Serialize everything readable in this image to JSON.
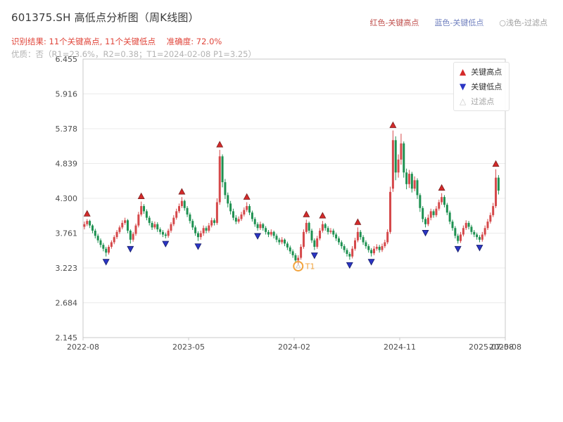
{
  "header": {
    "legend_top": [
      {
        "label": "红色-关键高点",
        "color": "#c0504d"
      },
      {
        "label": "蓝色-关键低点",
        "color": "#7080bf"
      },
      {
        "label": "○浅色-过滤点",
        "color": "#9e9e9e"
      }
    ],
    "result_line": "识别结果: 11个关键高点, 11个关键低点",
    "accuracy_line": "准确度: 72.0%",
    "quality_line": "优质：否（R1=23.6%，R2=0.38；T1=2024-02-08 P1=3.25）"
  },
  "chart_data": {
    "type": "candlestick",
    "title": "601375.SH 高低点分析图（周K线图）",
    "xlabel": "",
    "ylabel": "",
    "ylim": [
      2.145,
      6.455
    ],
    "grid": "horizontal",
    "legend_position": "upper right",
    "y_ticks": [
      "6.455",
      "5.916",
      "5.378",
      "4.839",
      "4.300",
      "3.761",
      "3.223",
      "2.684",
      "2.145"
    ],
    "x_ticks": [
      {
        "label": "2022-08",
        "pos": 0
      },
      {
        "label": "2023-05",
        "pos": 39
      },
      {
        "label": "2024-02",
        "pos": 78
      },
      {
        "label": "2024-11",
        "pos": 117
      },
      {
        "label": "2025-08",
        "pos": 156
      }
    ],
    "end_date_label": "2025-07-08",
    "x_span": 156,
    "candles": [
      [
        3.86,
        3.94,
        3.82,
        3.9
      ],
      [
        3.9,
        3.98,
        3.87,
        3.95
      ],
      [
        3.95,
        3.97,
        3.84,
        3.88
      ],
      [
        3.88,
        3.9,
        3.76,
        3.8
      ],
      [
        3.8,
        3.83,
        3.68,
        3.72
      ],
      [
        3.72,
        3.75,
        3.61,
        3.65
      ],
      [
        3.65,
        3.68,
        3.54,
        3.58
      ],
      [
        3.58,
        3.61,
        3.48,
        3.52
      ],
      [
        3.52,
        3.55,
        3.4,
        3.46
      ],
      [
        3.46,
        3.58,
        3.43,
        3.55
      ],
      [
        3.55,
        3.65,
        3.52,
        3.62
      ],
      [
        3.62,
        3.73,
        3.59,
        3.7
      ],
      [
        3.7,
        3.81,
        3.67,
        3.78
      ],
      [
        3.78,
        3.88,
        3.75,
        3.85
      ],
      [
        3.85,
        3.96,
        3.82,
        3.92
      ],
      [
        3.92,
        4.0,
        3.89,
        3.96
      ],
      [
        3.96,
        3.98,
        3.76,
        3.8
      ],
      [
        3.8,
        3.82,
        3.6,
        3.66
      ],
      [
        3.66,
        3.78,
        3.63,
        3.75
      ],
      [
        3.75,
        3.91,
        3.72,
        3.88
      ],
      [
        3.88,
        4.09,
        3.85,
        4.05
      ],
      [
        4.05,
        4.25,
        4.02,
        4.18
      ],
      [
        4.18,
        4.21,
        4.06,
        4.1
      ],
      [
        4.1,
        4.13,
        3.96,
        4.0
      ],
      [
        4.0,
        4.03,
        3.88,
        3.92
      ],
      [
        3.92,
        3.95,
        3.81,
        3.85
      ],
      [
        3.85,
        3.94,
        3.82,
        3.9
      ],
      [
        3.9,
        3.93,
        3.78,
        3.82
      ],
      [
        3.82,
        3.85,
        3.74,
        3.78
      ],
      [
        3.78,
        3.81,
        3.7,
        3.74
      ],
      [
        3.74,
        3.77,
        3.68,
        3.72
      ],
      [
        3.72,
        3.83,
        3.69,
        3.8
      ],
      [
        3.8,
        3.93,
        3.77,
        3.9
      ],
      [
        3.9,
        4.04,
        3.87,
        4.0
      ],
      [
        4.0,
        4.14,
        3.97,
        4.1
      ],
      [
        4.1,
        4.22,
        4.07,
        4.18
      ],
      [
        4.18,
        4.32,
        4.15,
        4.26
      ],
      [
        4.26,
        4.28,
        4.11,
        4.15
      ],
      [
        4.15,
        4.18,
        4.01,
        4.05
      ],
      [
        4.05,
        4.08,
        3.91,
        3.95
      ],
      [
        3.95,
        3.98,
        3.81,
        3.85
      ],
      [
        3.85,
        3.88,
        3.72,
        3.76
      ],
      [
        3.76,
        3.79,
        3.64,
        3.7
      ],
      [
        3.7,
        3.8,
        3.66,
        3.76
      ],
      [
        3.76,
        3.88,
        3.72,
        3.84
      ],
      [
        3.84,
        3.87,
        3.76,
        3.8
      ],
      [
        3.8,
        3.92,
        3.77,
        3.88
      ],
      [
        3.88,
        4.0,
        3.85,
        3.96
      ],
      [
        3.96,
        3.99,
        3.88,
        3.92
      ],
      [
        3.92,
        4.3,
        3.89,
        4.24
      ],
      [
        4.24,
        5.05,
        4.2,
        4.95
      ],
      [
        4.95,
        4.98,
        4.47,
        4.55
      ],
      [
        4.55,
        4.6,
        4.29,
        4.35
      ],
      [
        4.35,
        4.39,
        4.16,
        4.22
      ],
      [
        4.22,
        4.26,
        4.05,
        4.1
      ],
      [
        4.1,
        4.14,
        3.96,
        4.0
      ],
      [
        4.0,
        4.04,
        3.9,
        3.94
      ],
      [
        3.94,
        4.02,
        3.91,
        3.98
      ],
      [
        3.98,
        4.09,
        3.95,
        4.05
      ],
      [
        4.05,
        4.16,
        4.02,
        4.12
      ],
      [
        4.12,
        4.24,
        4.09,
        4.18
      ],
      [
        4.18,
        4.21,
        4.04,
        4.08
      ],
      [
        4.08,
        4.11,
        3.94,
        3.98
      ],
      [
        3.98,
        4.01,
        3.86,
        3.9
      ],
      [
        3.9,
        3.93,
        3.8,
        3.84
      ],
      [
        3.84,
        3.94,
        3.81,
        3.9
      ],
      [
        3.9,
        3.92,
        3.8,
        3.84
      ],
      [
        3.84,
        3.87,
        3.74,
        3.78
      ],
      [
        3.78,
        3.81,
        3.7,
        3.74
      ],
      [
        3.74,
        3.82,
        3.71,
        3.78
      ],
      [
        3.78,
        3.8,
        3.68,
        3.72
      ],
      [
        3.72,
        3.75,
        3.62,
        3.66
      ],
      [
        3.66,
        3.69,
        3.58,
        3.62
      ],
      [
        3.62,
        3.7,
        3.59,
        3.66
      ],
      [
        3.66,
        3.68,
        3.56,
        3.6
      ],
      [
        3.6,
        3.63,
        3.5,
        3.54
      ],
      [
        3.54,
        3.57,
        3.44,
        3.48
      ],
      [
        3.48,
        3.51,
        3.38,
        3.42
      ],
      [
        3.42,
        3.45,
        3.3,
        3.34
      ],
      [
        3.34,
        3.42,
        3.25,
        3.38
      ],
      [
        3.38,
        3.59,
        3.35,
        3.55
      ],
      [
        3.55,
        3.82,
        3.52,
        3.78
      ],
      [
        3.78,
        3.97,
        3.75,
        3.92
      ],
      [
        3.92,
        3.94,
        3.76,
        3.8
      ],
      [
        3.8,
        3.83,
        3.61,
        3.65
      ],
      [
        3.65,
        3.68,
        3.5,
        3.55
      ],
      [
        3.55,
        3.72,
        3.52,
        3.68
      ],
      [
        3.68,
        3.84,
        3.65,
        3.8
      ],
      [
        3.8,
        3.95,
        3.77,
        3.9
      ],
      [
        3.9,
        3.92,
        3.8,
        3.84
      ],
      [
        3.84,
        3.87,
        3.74,
        3.78
      ],
      [
        3.78,
        3.84,
        3.75,
        3.8
      ],
      [
        3.8,
        3.83,
        3.7,
        3.74
      ],
      [
        3.74,
        3.77,
        3.64,
        3.68
      ],
      [
        3.68,
        3.71,
        3.58,
        3.62
      ],
      [
        3.62,
        3.65,
        3.52,
        3.56
      ],
      [
        3.56,
        3.59,
        3.46,
        3.5
      ],
      [
        3.5,
        3.53,
        3.4,
        3.44
      ],
      [
        3.44,
        3.47,
        3.35,
        3.4
      ],
      [
        3.4,
        3.56,
        3.37,
        3.52
      ],
      [
        3.52,
        3.69,
        3.49,
        3.65
      ],
      [
        3.65,
        3.85,
        3.62,
        3.78
      ],
      [
        3.78,
        3.81,
        3.66,
        3.7
      ],
      [
        3.7,
        3.73,
        3.58,
        3.62
      ],
      [
        3.62,
        3.65,
        3.52,
        3.56
      ],
      [
        3.56,
        3.59,
        3.46,
        3.5
      ],
      [
        3.5,
        3.53,
        3.4,
        3.45
      ],
      [
        3.45,
        3.56,
        3.42,
        3.52
      ],
      [
        3.52,
        3.59,
        3.49,
        3.55
      ],
      [
        3.55,
        3.58,
        3.46,
        3.5
      ],
      [
        3.5,
        3.6,
        3.47,
        3.56
      ],
      [
        3.56,
        3.66,
        3.53,
        3.62
      ],
      [
        3.62,
        3.82,
        3.59,
        3.78
      ],
      [
        3.78,
        4.48,
        3.75,
        4.4
      ],
      [
        4.45,
        5.35,
        4.4,
        5.2
      ],
      [
        5.2,
        5.26,
        4.58,
        4.7
      ],
      [
        4.7,
        4.98,
        4.62,
        4.9
      ],
      [
        4.9,
        5.3,
        4.82,
        5.15
      ],
      [
        5.15,
        5.18,
        4.62,
        4.7
      ],
      [
        4.7,
        4.76,
        4.44,
        4.52
      ],
      [
        4.52,
        4.74,
        4.46,
        4.68
      ],
      [
        4.68,
        4.71,
        4.39,
        4.45
      ],
      [
        4.45,
        4.64,
        4.41,
        4.58
      ],
      [
        4.58,
        4.61,
        4.29,
        4.35
      ],
      [
        4.35,
        4.38,
        4.09,
        4.15
      ],
      [
        4.15,
        4.18,
        3.93,
        3.98
      ],
      [
        3.98,
        4.01,
        3.85,
        3.9
      ],
      [
        3.9,
        4.05,
        3.87,
        4.0
      ],
      [
        4.0,
        4.14,
        3.96,
        4.1
      ],
      [
        4.1,
        4.13,
        4.0,
        4.04
      ],
      [
        4.04,
        4.18,
        4.01,
        4.14
      ],
      [
        4.14,
        4.28,
        4.11,
        4.24
      ],
      [
        4.24,
        4.38,
        4.2,
        4.32
      ],
      [
        4.32,
        4.35,
        4.16,
        4.2
      ],
      [
        4.2,
        4.23,
        4.04,
        4.08
      ],
      [
        4.08,
        4.11,
        3.9,
        3.94
      ],
      [
        3.94,
        3.97,
        3.8,
        3.84
      ],
      [
        3.84,
        3.87,
        3.68,
        3.72
      ],
      [
        3.72,
        3.75,
        3.6,
        3.64
      ],
      [
        3.64,
        3.78,
        3.61,
        3.74
      ],
      [
        3.74,
        3.88,
        3.71,
        3.84
      ],
      [
        3.84,
        3.96,
        3.81,
        3.92
      ],
      [
        3.92,
        3.95,
        3.82,
        3.86
      ],
      [
        3.86,
        3.89,
        3.74,
        3.78
      ],
      [
        3.78,
        3.81,
        3.7,
        3.74
      ],
      [
        3.74,
        3.77,
        3.66,
        3.7
      ],
      [
        3.7,
        3.73,
        3.62,
        3.66
      ],
      [
        3.66,
        3.78,
        3.63,
        3.74
      ],
      [
        3.74,
        3.88,
        3.71,
        3.84
      ],
      [
        3.84,
        3.98,
        3.81,
        3.94
      ],
      [
        3.94,
        4.08,
        3.91,
        4.04
      ],
      [
        4.04,
        4.23,
        4.01,
        4.18
      ],
      [
        4.18,
        4.75,
        4.15,
        4.62
      ],
      [
        4.62,
        4.66,
        4.36,
        4.42
      ]
    ],
    "key_high_indices": [
      1,
      21,
      36,
      50,
      60,
      82,
      88,
      101,
      114,
      132,
      152
    ],
    "key_low_indices": [
      8,
      17,
      30,
      42,
      64,
      85,
      98,
      106,
      126,
      138,
      146
    ],
    "filtered_points": [
      {
        "index": 79,
        "price": 3.25,
        "label": "T1"
      }
    ],
    "plot_legend": [
      {
        "label": "关键高点"
      },
      {
        "label": "关键低点"
      },
      {
        "label": "过滤点"
      }
    ],
    "colors": {
      "up": "#d5484a",
      "down": "#1e9151",
      "key_high": "#d42a2a",
      "key_high_edge": "#7a1f1f",
      "key_low": "#2b35c4",
      "key_low_edge": "#141b66",
      "filtered": "#f2a33c",
      "filtered_icon": "#c9c9c9",
      "filtered_text": "#a0a0a0",
      "grid": "#ebebeb",
      "spine": "#c9c9c9",
      "tick_text": "#4d4d4d"
    }
  }
}
